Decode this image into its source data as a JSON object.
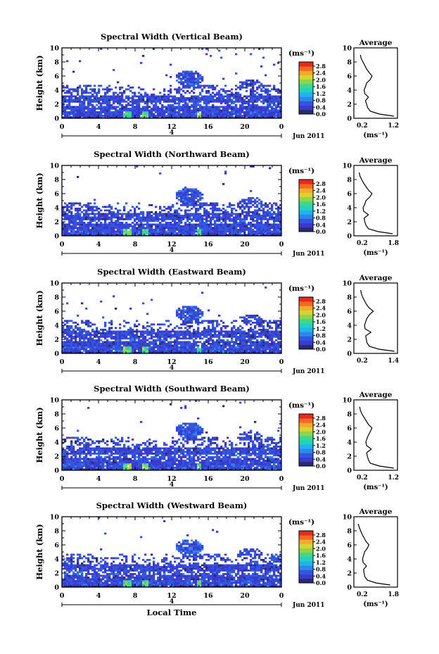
{
  "figure": {
    "x_title": "Local Time",
    "date_label": "Jun 2011",
    "day_label": "4"
  },
  "colorbar": {
    "unit_label": "(ms⁻¹)",
    "ticks": [
      "0.0",
      "0.4",
      "0.8",
      "1.2",
      "1.6",
      "2.0",
      "2.4",
      "2.8"
    ],
    "colors": [
      "#2a2a6e",
      "#3a3acc",
      "#3356e0",
      "#2f86ee",
      "#21b4ea",
      "#1fd2c4",
      "#3fd88a",
      "#8cd64c",
      "#d6d432",
      "#f2aa2a",
      "#f26a22",
      "#e82a1a"
    ]
  },
  "chart_data": [
    {
      "type": "heatmap",
      "title": "Spectral Width (Vertical Beam)",
      "xlabel": "",
      "ylabel": "Height (km)",
      "xlim": [
        0,
        24
      ],
      "ylim": [
        0,
        10
      ],
      "xticks": [
        "0",
        "4",
        "8",
        "12",
        "16",
        "20",
        "0"
      ],
      "yticks": [
        "0",
        "2",
        "4",
        "6",
        "8",
        "10"
      ],
      "zlim": [
        0,
        2.8
      ],
      "profile": {
        "title": "Average",
        "xlabel": "(ms⁻¹)",
        "xlim": [
          0.0,
          1.2
        ],
        "xticks": [
          "0.2",
          "1.2"
        ],
        "heights": [
          0.3,
          0.6,
          1.0,
          1.5,
          2.0,
          2.5,
          3.0,
          3.5,
          4.0,
          4.5,
          5.0,
          5.5,
          6.0,
          6.5,
          7.0,
          7.5,
          8.0,
          8.5,
          9.0
        ],
        "values": [
          1.1,
          0.7,
          0.45,
          0.38,
          0.35,
          0.32,
          0.4,
          0.3,
          0.28,
          0.32,
          0.35,
          0.45,
          0.5,
          0.42,
          0.35,
          0.3,
          0.25,
          0.2,
          0.18
        ]
      }
    },
    {
      "type": "heatmap",
      "title": "Spectral Width (Northward Beam)",
      "xlabel": "",
      "ylabel": "Height (km)",
      "xlim": [
        0,
        24
      ],
      "ylim": [
        0,
        10
      ],
      "xticks": [
        "0",
        "4",
        "8",
        "12",
        "16",
        "20",
        "0"
      ],
      "yticks": [
        "0",
        "2",
        "4",
        "6",
        "8",
        "10"
      ],
      "zlim": [
        0,
        2.8
      ],
      "profile": {
        "title": "Average",
        "xlabel": "(ms⁻¹)",
        "xlim": [
          0.0,
          1.8
        ],
        "xticks": [
          "0.2",
          "1.8"
        ],
        "heights": [
          0.3,
          0.6,
          1.0,
          1.5,
          2.0,
          2.5,
          3.0,
          3.5,
          4.0,
          4.5,
          5.0,
          5.5,
          6.0,
          6.5,
          7.0,
          7.5,
          8.0,
          8.5,
          9.0
        ],
        "values": [
          1.6,
          1.0,
          0.6,
          0.5,
          0.45,
          0.42,
          0.6,
          0.4,
          0.38,
          0.45,
          0.5,
          0.65,
          0.75,
          0.6,
          0.5,
          0.4,
          0.32,
          0.25,
          0.22
        ]
      }
    },
    {
      "type": "heatmap",
      "title": "Spectral Width (Eastward Beam)",
      "xlabel": "",
      "ylabel": "Height (km)",
      "xlim": [
        0,
        24
      ],
      "ylim": [
        0,
        10
      ],
      "xticks": [
        "0",
        "4",
        "8",
        "12",
        "16",
        "20",
        "0"
      ],
      "yticks": [
        "0",
        "2",
        "4",
        "6",
        "8",
        "10"
      ],
      "zlim": [
        0,
        2.8
      ],
      "profile": {
        "title": "Average",
        "xlabel": "",
        "xlim": [
          0.0,
          1.4
        ],
        "xticks": [
          "0.2",
          "1.4"
        ],
        "heights": [
          0.3,
          0.6,
          1.0,
          1.5,
          2.0,
          2.5,
          3.0,
          3.5,
          4.0,
          4.5,
          5.0,
          5.5,
          6.0,
          6.5,
          7.0,
          7.5,
          8.0,
          8.5,
          9.0
        ],
        "values": [
          1.3,
          0.8,
          0.5,
          0.42,
          0.4,
          0.38,
          0.55,
          0.36,
          0.34,
          0.38,
          0.42,
          0.5,
          0.62,
          0.48,
          0.4,
          0.34,
          0.28,
          0.24,
          0.22
        ]
      }
    },
    {
      "type": "heatmap",
      "title": "Spectral Width (Southward Beam)",
      "xlabel": "",
      "ylabel": "Height (km)",
      "xlim": [
        0,
        24
      ],
      "ylim": [
        0,
        10
      ],
      "xticks": [
        "0",
        "4",
        "8",
        "12",
        "16",
        "20",
        "0"
      ],
      "yticks": [
        "0",
        "2",
        "4",
        "6",
        "8",
        "10"
      ],
      "zlim": [
        0,
        2.8
      ],
      "profile": {
        "title": "Average",
        "xlabel": "(ms⁻¹)",
        "xlim": [
          0.0,
          1.2
        ],
        "xticks": [
          "0.2",
          "1.2"
        ],
        "heights": [
          0.3,
          0.6,
          1.0,
          1.5,
          2.0,
          2.5,
          3.0,
          3.5,
          4.0,
          4.5,
          5.0,
          5.5,
          6.0,
          6.5,
          7.0,
          7.5,
          8.0,
          8.5,
          9.0
        ],
        "values": [
          1.1,
          0.7,
          0.45,
          0.4,
          0.37,
          0.35,
          0.48,
          0.35,
          0.33,
          0.36,
          0.4,
          0.45,
          0.5,
          0.4,
          0.34,
          0.28,
          0.22,
          0.18,
          0.16
        ]
      }
    },
    {
      "type": "heatmap",
      "title": "Spectral Width (Westward Beam)",
      "xlabel": "Local Time",
      "ylabel": "Height (km)",
      "xlim": [
        0,
        24
      ],
      "ylim": [
        0,
        10
      ],
      "xticks": [
        "0",
        "4",
        "8",
        "12",
        "16",
        "20",
        "0"
      ],
      "yticks": [
        "0",
        "2",
        "4",
        "6",
        "8",
        "10"
      ],
      "zlim": [
        0,
        2.8
      ],
      "profile": {
        "title": "Average",
        "xlabel": "(ms⁻¹)",
        "xlim": [
          0.0,
          1.8
        ],
        "xticks": [
          "0.2",
          "1.8"
        ],
        "heights": [
          0.3,
          0.6,
          1.0,
          1.5,
          2.0,
          2.5,
          3.0,
          3.5,
          4.0,
          4.5,
          5.0,
          5.5,
          6.0,
          6.5,
          7.0,
          7.5,
          8.0,
          8.5,
          9.0
        ],
        "values": [
          1.5,
          0.9,
          0.55,
          0.45,
          0.42,
          0.4,
          0.52,
          0.38,
          0.36,
          0.4,
          0.44,
          0.55,
          0.62,
          0.5,
          0.42,
          0.34,
          0.28,
          0.22,
          0.18
        ]
      }
    }
  ]
}
